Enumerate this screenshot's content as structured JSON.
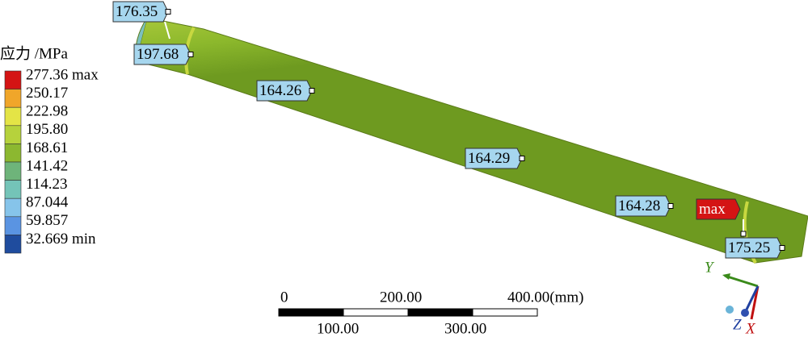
{
  "legend": {
    "title": "应力 /MPa",
    "entries": [
      {
        "label": "277.36 max",
        "color": "#d41414"
      },
      {
        "label": "250.17",
        "color": "#f0a62a"
      },
      {
        "label": "222.98",
        "color": "#e4e446"
      },
      {
        "label": "195.80",
        "color": "#b6d23c"
      },
      {
        "label": "168.61",
        "color": "#8cb830"
      },
      {
        "label": "141.42",
        "color": "#6eb47a"
      },
      {
        "label": "114.23",
        "color": "#74c4b8"
      },
      {
        "label": "87.044",
        "color": "#86c4ea"
      },
      {
        "label": "59.857",
        "color": "#5a94e2"
      },
      {
        "label": "32.669 min",
        "color": "#1f4c9e"
      }
    ]
  },
  "probes": [
    "176.35",
    "197.68",
    "164.26",
    "164.29",
    "164.28",
    "max",
    "175.25"
  ],
  "scale_bar": {
    "top_labels": [
      "0",
      "200.00",
      "400.00(mm)"
    ],
    "bottom_labels": [
      "100.00",
      "300.00"
    ]
  },
  "triad": {
    "y": "Y",
    "z": "Z",
    "x": "X"
  }
}
